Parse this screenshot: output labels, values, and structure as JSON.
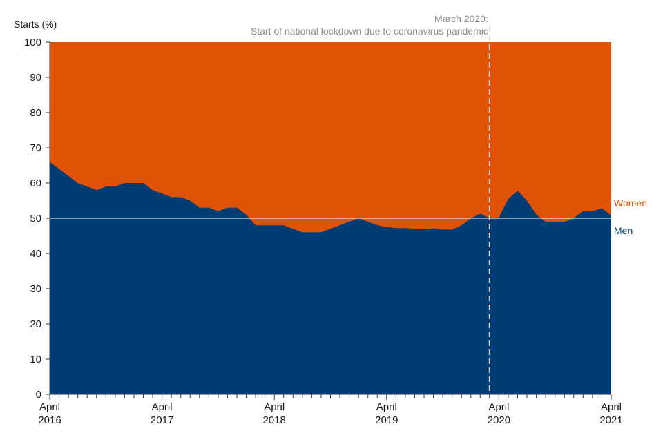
{
  "chart_data": {
    "type": "area",
    "stacked": true,
    "normalized_percent": true,
    "ylabel": "Starts (%)",
    "ylim": [
      0,
      100
    ],
    "yticks": [
      0,
      10,
      20,
      30,
      40,
      50,
      60,
      70,
      80,
      90,
      100
    ],
    "grid": false,
    "reference_line_y": 50,
    "x_range": [
      "2016-04",
      "2021-04"
    ],
    "xtick_labels": [
      {
        "month": "April",
        "year": "2016"
      },
      {
        "month": "April",
        "year": "2017"
      },
      {
        "month": "April",
        "year": "2018"
      },
      {
        "month": "April",
        "year": "2019"
      },
      {
        "month": "April",
        "year": "2020"
      },
      {
        "month": "April",
        "year": "2021"
      }
    ],
    "annotation": {
      "x": "2020-03",
      "line1": "March 2020:",
      "line2": "Start of national lockdown due to coronavirus pandemic"
    },
    "series": [
      {
        "name": "Men",
        "color": "#003d74",
        "x": [
          "2016-04",
          "2016-05",
          "2016-06",
          "2016-07",
          "2016-08",
          "2016-09",
          "2016-10",
          "2016-11",
          "2016-12",
          "2017-01",
          "2017-02",
          "2017-03",
          "2017-04",
          "2017-05",
          "2017-06",
          "2017-07",
          "2017-08",
          "2017-09",
          "2017-10",
          "2017-11",
          "2017-12",
          "2018-01",
          "2018-02",
          "2018-03",
          "2018-04",
          "2018-05",
          "2018-06",
          "2018-07",
          "2018-08",
          "2018-09",
          "2018-10",
          "2018-11",
          "2018-12",
          "2019-01",
          "2019-02",
          "2019-03",
          "2019-04",
          "2019-05",
          "2019-06",
          "2019-07",
          "2019-08",
          "2019-09",
          "2019-10",
          "2019-11",
          "2019-12",
          "2020-01",
          "2020-02",
          "2020-03",
          "2020-04",
          "2020-05",
          "2020-06",
          "2020-07",
          "2020-08",
          "2020-09",
          "2020-10",
          "2020-11",
          "2020-12",
          "2021-01",
          "2021-02",
          "2021-03",
          "2021-04"
        ],
        "values": [
          66,
          64,
          62,
          60,
          59,
          58,
          59,
          59,
          60,
          60,
          60,
          58,
          57,
          56,
          56,
          55,
          53,
          53,
          52,
          53,
          53,
          51,
          48,
          48,
          48,
          48,
          47,
          46,
          46,
          46,
          47,
          48,
          49,
          50,
          49,
          48,
          47.5,
          47.2,
          47.2,
          47,
          47,
          47.1,
          46.8,
          46.8,
          48,
          50,
          51.3,
          50,
          50.2,
          55.5,
          57.8,
          55,
          51,
          49,
          49,
          49,
          50,
          52,
          52,
          52.8,
          50.8
        ]
      },
      {
        "name": "Women",
        "color": "#e05206",
        "description": "remainder to 100%"
      }
    ]
  }
}
